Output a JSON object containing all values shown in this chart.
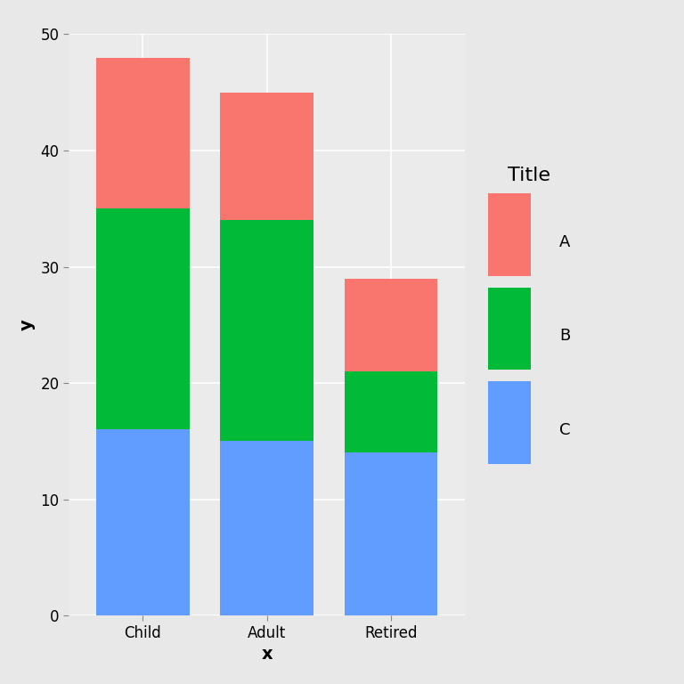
{
  "categories": [
    "Child",
    "Adult",
    "Retired"
  ],
  "C_values": [
    16,
    15,
    14
  ],
  "B_values": [
    19,
    19,
    7
  ],
  "A_values": [
    13,
    11,
    8
  ],
  "color_A": "#F8766D",
  "color_B": "#00BA38",
  "color_C": "#619CFF",
  "legend_title": "Title",
  "xlabel": "x",
  "ylabel": "y",
  "ylim": [
    0,
    50
  ],
  "yticks": [
    0,
    10,
    20,
    30,
    40,
    50
  ],
  "outer_bg": "#E8E8E8",
  "panel_bg": "#EBEBEB",
  "grid_color": "#FFFFFF",
  "bar_width": 0.75,
  "title_fontsize": 16,
  "axis_label_fontsize": 14,
  "tick_fontsize": 12,
  "legend_fontsize": 13
}
